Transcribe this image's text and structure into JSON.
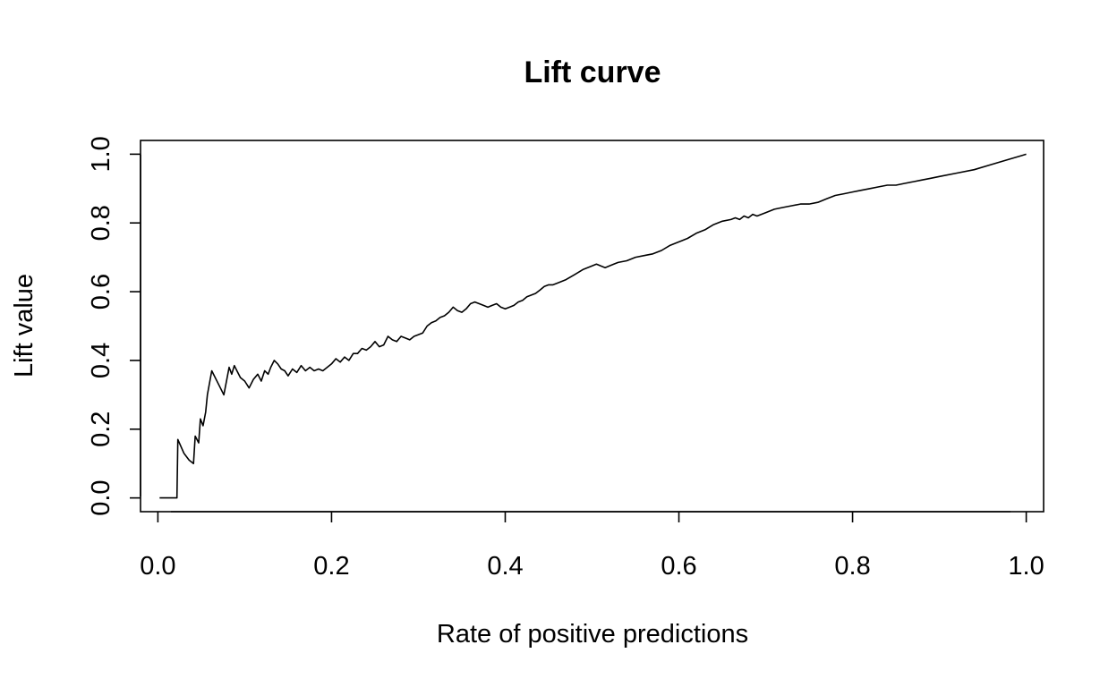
{
  "chart_data": {
    "type": "line",
    "title": "Lift curve",
    "xlabel": "Rate of positive predictions",
    "ylabel": "Lift value",
    "xlim": [
      -0.02,
      1.02
    ],
    "ylim": [
      -0.04,
      1.04
    ],
    "x_ticks": [
      "0.0",
      "0.2",
      "0.4",
      "0.6",
      "0.8",
      "1.0"
    ],
    "y_ticks": [
      "0.0",
      "0.2",
      "0.4",
      "0.6",
      "0.8",
      "1.0"
    ],
    "grid": false,
    "series": [
      {
        "color": "#000000",
        "x": [
          0.002,
          0.022,
          0.023,
          0.03,
          0.036,
          0.041,
          0.043,
          0.047,
          0.049,
          0.052,
          0.055,
          0.057,
          0.062,
          0.07,
          0.076,
          0.082,
          0.085,
          0.088,
          0.091,
          0.095,
          0.1,
          0.105,
          0.11,
          0.115,
          0.119,
          0.123,
          0.127,
          0.13,
          0.134,
          0.138,
          0.142,
          0.146,
          0.15,
          0.155,
          0.16,
          0.165,
          0.17,
          0.175,
          0.18,
          0.185,
          0.19,
          0.195,
          0.2,
          0.205,
          0.21,
          0.215,
          0.22,
          0.225,
          0.23,
          0.235,
          0.24,
          0.245,
          0.25,
          0.255,
          0.26,
          0.265,
          0.27,
          0.275,
          0.28,
          0.285,
          0.29,
          0.295,
          0.3,
          0.305,
          0.31,
          0.315,
          0.32,
          0.325,
          0.33,
          0.335,
          0.34,
          0.345,
          0.35,
          0.355,
          0.36,
          0.365,
          0.37,
          0.375,
          0.38,
          0.385,
          0.39,
          0.395,
          0.4,
          0.405,
          0.41,
          0.415,
          0.42,
          0.425,
          0.43,
          0.435,
          0.44,
          0.445,
          0.45,
          0.455,
          0.46,
          0.47,
          0.48,
          0.49,
          0.5,
          0.505,
          0.51,
          0.515,
          0.52,
          0.525,
          0.53,
          0.54,
          0.55,
          0.56,
          0.57,
          0.58,
          0.59,
          0.6,
          0.61,
          0.62,
          0.63,
          0.64,
          0.65,
          0.66,
          0.665,
          0.67,
          0.675,
          0.68,
          0.685,
          0.69,
          0.7,
          0.71,
          0.72,
          0.73,
          0.74,
          0.75,
          0.76,
          0.77,
          0.78,
          0.79,
          0.8,
          0.81,
          0.82,
          0.83,
          0.84,
          0.85,
          0.86,
          0.87,
          0.88,
          0.89,
          0.9,
          0.92,
          0.94,
          0.96,
          0.98,
          1.0
        ],
        "y": [
          0.0,
          0.0,
          0.17,
          0.13,
          0.11,
          0.1,
          0.18,
          0.16,
          0.23,
          0.21,
          0.25,
          0.3,
          0.37,
          0.33,
          0.3,
          0.38,
          0.36,
          0.385,
          0.37,
          0.35,
          0.34,
          0.32,
          0.345,
          0.36,
          0.34,
          0.37,
          0.36,
          0.38,
          0.4,
          0.39,
          0.375,
          0.37,
          0.355,
          0.375,
          0.365,
          0.385,
          0.37,
          0.38,
          0.37,
          0.375,
          0.37,
          0.38,
          0.39,
          0.405,
          0.395,
          0.41,
          0.4,
          0.42,
          0.42,
          0.435,
          0.43,
          0.44,
          0.455,
          0.44,
          0.445,
          0.47,
          0.46,
          0.455,
          0.47,
          0.465,
          0.46,
          0.47,
          0.475,
          0.48,
          0.5,
          0.51,
          0.515,
          0.525,
          0.53,
          0.54,
          0.555,
          0.545,
          0.54,
          0.55,
          0.565,
          0.57,
          0.565,
          0.56,
          0.555,
          0.56,
          0.565,
          0.555,
          0.55,
          0.555,
          0.56,
          0.57,
          0.575,
          0.585,
          0.59,
          0.595,
          0.605,
          0.615,
          0.62,
          0.62,
          0.625,
          0.635,
          0.65,
          0.665,
          0.675,
          0.68,
          0.675,
          0.67,
          0.675,
          0.68,
          0.685,
          0.69,
          0.7,
          0.705,
          0.71,
          0.72,
          0.735,
          0.745,
          0.755,
          0.77,
          0.78,
          0.795,
          0.805,
          0.81,
          0.815,
          0.81,
          0.82,
          0.815,
          0.825,
          0.82,
          0.83,
          0.84,
          0.845,
          0.85,
          0.855,
          0.855,
          0.86,
          0.87,
          0.88,
          0.885,
          0.89,
          0.895,
          0.9,
          0.905,
          0.91,
          0.91,
          0.915,
          0.92,
          0.925,
          0.93,
          0.935,
          0.945,
          0.955,
          0.97,
          0.985,
          1.0
        ]
      }
    ]
  }
}
